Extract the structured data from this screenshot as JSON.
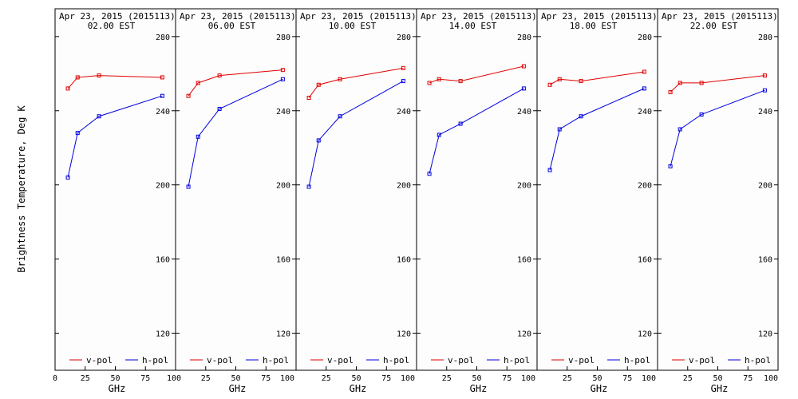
{
  "chart_data": {
    "type": "line",
    "ylabel": "Brightness Temperature, Deg K",
    "xlabel": "GHz",
    "xlim": [
      0,
      100
    ],
    "ylim": [
      100,
      295
    ],
    "yticks": [
      120,
      160,
      200,
      240,
      280
    ],
    "xticks": [
      0,
      25,
      50,
      75,
      100
    ],
    "xtick_labels": [
      "0",
      "25",
      "50",
      "75",
      "100"
    ],
    "x": [
      10.65,
      18.7,
      36.5,
      89
    ],
    "legend": [
      "v-pol",
      "h-pol"
    ],
    "colors": {
      "v-pol": "#e00000",
      "h-pol": "#0000e0"
    },
    "panels": [
      {
        "date": "Apr 23, 2015 (2015113)",
        "time": "02.00 EST",
        "series": [
          {
            "name": "v-pol",
            "values": [
              252,
              258,
              259,
              258
            ]
          },
          {
            "name": "h-pol",
            "values": [
              204,
              228,
              237,
              248
            ]
          }
        ]
      },
      {
        "date": "Apr 23, 2015 (2015113)",
        "time": "06.00 EST",
        "series": [
          {
            "name": "v-pol",
            "values": [
              248,
              255,
              259,
              262
            ]
          },
          {
            "name": "h-pol",
            "values": [
              199,
              226,
              241,
              257
            ]
          }
        ]
      },
      {
        "date": "Apr 23, 2015 (2015113)",
        "time": "10.00 EST",
        "series": [
          {
            "name": "v-pol",
            "values": [
              247,
              254,
              257,
              263
            ]
          },
          {
            "name": "h-pol",
            "values": [
              199,
              224,
              237,
              256
            ]
          }
        ]
      },
      {
        "date": "Apr 23, 2015 (2015113)",
        "time": "14.00 EST",
        "series": [
          {
            "name": "v-pol",
            "values": [
              255,
              257,
              256,
              264
            ]
          },
          {
            "name": "h-pol",
            "values": [
              206,
              227,
              233,
              252
            ]
          }
        ]
      },
      {
        "date": "Apr 23, 2015 (2015113)",
        "time": "18.00 EST",
        "series": [
          {
            "name": "v-pol",
            "values": [
              254,
              257,
              256,
              261
            ]
          },
          {
            "name": "h-pol",
            "values": [
              208,
              230,
              237,
              252
            ]
          }
        ]
      },
      {
        "date": "Apr 23, 2015 (2015113)",
        "time": "22.00 EST",
        "series": [
          {
            "name": "v-pol",
            "values": [
              250,
              255,
              255,
              259
            ]
          },
          {
            "name": "h-pol",
            "values": [
              210,
              230,
              238,
              251
            ]
          }
        ]
      }
    ]
  }
}
